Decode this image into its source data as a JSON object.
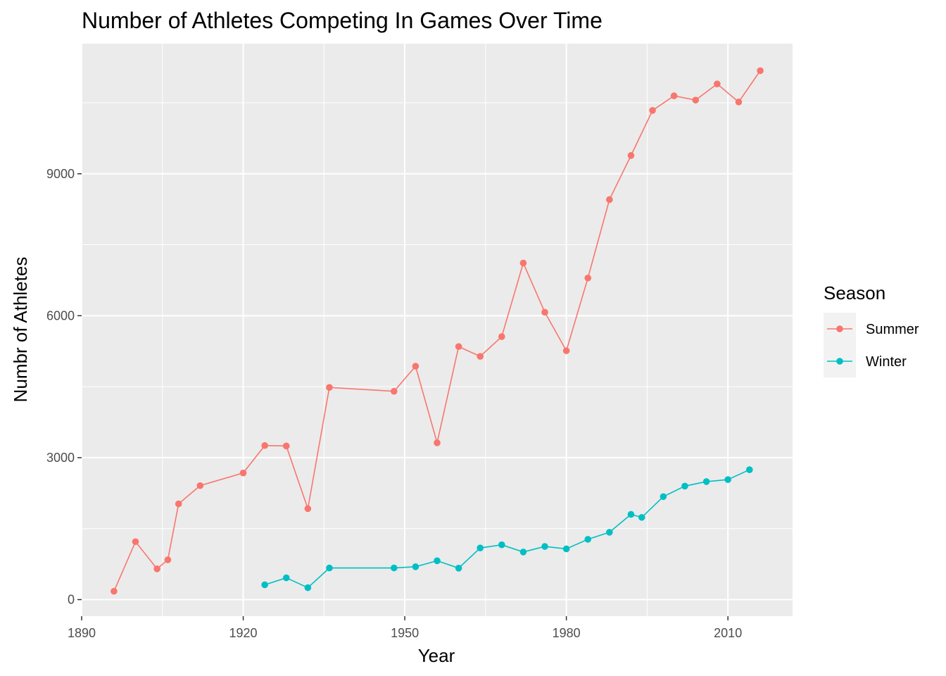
{
  "chart_data": {
    "type": "line",
    "title": "Number of Athletes Competing In Games Over Time",
    "xlabel": "Year",
    "ylabel": "Numbr of Athletes",
    "xlim": [
      1890,
      2022
    ],
    "ylim": [
      -350,
      11750
    ],
    "xticks": [
      1890,
      1920,
      1950,
      1980,
      2010
    ],
    "yticks": [
      0,
      3000,
      6000,
      9000
    ],
    "legend": {
      "title": "Season",
      "position": "right"
    },
    "background": "#ebebeb",
    "grid": true,
    "series": [
      {
        "name": "Summer",
        "color": "#F8766D",
        "x": [
          1896,
          1900,
          1904,
          1906,
          1908,
          1912,
          1920,
          1924,
          1928,
          1932,
          1936,
          1948,
          1952,
          1956,
          1960,
          1964,
          1968,
          1972,
          1976,
          1980,
          1984,
          1988,
          1992,
          1996,
          2000,
          2004,
          2008,
          2012,
          2016
        ],
        "y": [
          176,
          1224,
          650,
          841,
          2024,
          2409,
          2676,
          3256,
          3247,
          1922,
          4484,
          4402,
          4932,
          3314,
          5348,
          5140,
          5558,
          7113,
          6073,
          5259,
          6797,
          8454,
          9386,
          10339,
          10647,
          10557,
          10899,
          10517,
          11179
        ]
      },
      {
        "name": "Winter",
        "color": "#00BFC4",
        "x": [
          1924,
          1928,
          1932,
          1936,
          1948,
          1952,
          1956,
          1960,
          1964,
          1968,
          1972,
          1976,
          1980,
          1984,
          1988,
          1992,
          1994,
          1998,
          2002,
          2006,
          2010,
          2014
        ],
        "y": [
          313,
          460,
          252,
          668,
          669,
          694,
          821,
          665,
          1091,
          1158,
          1006,
          1123,
          1072,
          1274,
          1423,
          1801,
          1737,
          2176,
          2399,
          2494,
          2536,
          2745
        ]
      }
    ]
  }
}
